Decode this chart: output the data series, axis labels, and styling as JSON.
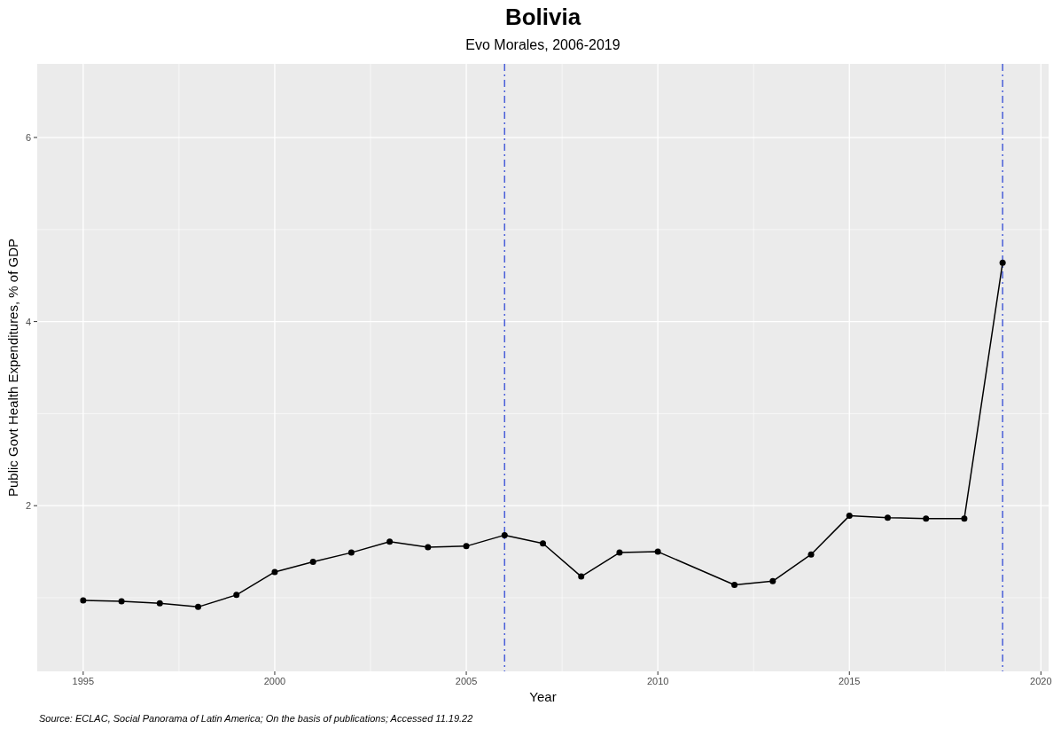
{
  "chart_data": {
    "type": "line",
    "title": "Bolivia",
    "subtitle": "Evo Morales, 2006-2019",
    "xlabel": "Year",
    "ylabel": "Public Govt Health Expenditures, % of GDP",
    "annotations": [
      "Source: ECLAC, Social Panorama of Latin America; On the basis of publications; Accessed 11.19.22"
    ],
    "series": [
      {
        "color": "#000000",
        "x": [
          1995,
          1996,
          1997,
          1998,
          1999,
          2000,
          2001,
          2002,
          2003,
          2004,
          2005,
          2006,
          2007,
          2008,
          2009,
          2010,
          2012,
          2013,
          2014,
          2015,
          2016,
          2017,
          2018,
          2019
        ],
        "values": [
          0.97,
          0.96,
          0.94,
          0.9,
          1.03,
          1.28,
          1.39,
          1.49,
          1.61,
          1.55,
          1.56,
          1.68,
          1.59,
          1.23,
          1.49,
          1.5,
          1.14,
          1.18,
          1.47,
          1.89,
          1.87,
          1.86,
          1.86,
          4.64
        ]
      }
    ],
    "xlim": [
      1993.8,
      2020.2
    ],
    "xticks": [
      1995,
      2000,
      2005,
      2010,
      2015,
      2020
    ],
    "ylim": [
      0.2,
      6.8
    ],
    "yticks": [
      2,
      4,
      6
    ],
    "ref_lines": [
      {
        "axis": "x",
        "value": 2006,
        "color": "#4a5fd9",
        "line_style": "dashdot"
      },
      {
        "axis": "x",
        "value": 2019,
        "color": "#4a5fd9",
        "line_style": "dashdot"
      }
    ],
    "grid": true,
    "marker": "circle",
    "line_style": "solid"
  }
}
